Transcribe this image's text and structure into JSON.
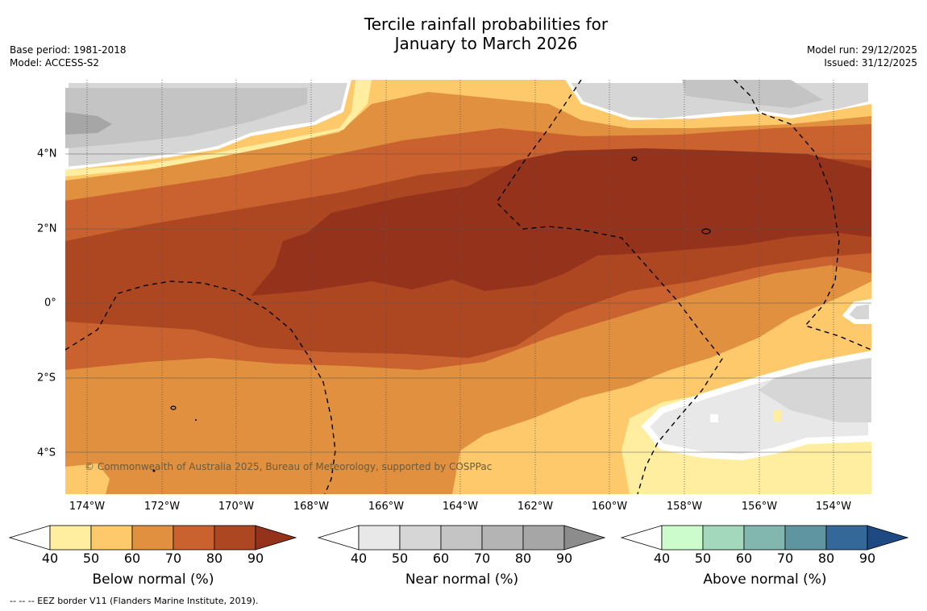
{
  "title": {
    "line1": "Tercile rainfall probabilities for",
    "line2": "January to March 2026"
  },
  "meta": {
    "base_period": "Base period: 1981-2018",
    "model": "Model: ACCESS-S2",
    "model_run": "Model run: 29/12/2025",
    "issued": "Issued: 31/12/2025"
  },
  "map": {
    "x_ticks": [
      "174°W",
      "172°W",
      "170°W",
      "168°W",
      "166°W",
      "164°W",
      "162°W",
      "160°W",
      "158°W",
      "156°W",
      "154°W"
    ],
    "y_ticks": [
      "4°N",
      "2°N",
      "0°",
      "2°S",
      "4°S"
    ],
    "copyright": "© Commonwealth of Australia 2025, Bureau of Meteorology, supported by COSPPac"
  },
  "legend": {
    "ticks": [
      "40",
      "50",
      "60",
      "70",
      "80",
      "90"
    ],
    "below": {
      "label": "Below normal (%)",
      "colors": [
        "#ffeea0",
        "#fdc96a",
        "#e0903f",
        "#c9622e",
        "#ad4722",
        "#95321c"
      ]
    },
    "near": {
      "label": "Near normal (%)",
      "colors": [
        "#e8e8e8",
        "#d6d6d6",
        "#c4c4c4",
        "#b4b4b4",
        "#a6a6a6",
        "#8c8c8c"
      ]
    },
    "above": {
      "label": "Above normal (%)",
      "colors": [
        "#ccfccc",
        "#a4d8bc",
        "#82b7b0",
        "#5e95a0",
        "#346898",
        "#1d4a82"
      ]
    }
  },
  "footnote": "--  --  -- EEZ border V11 (Flanders Marine Institute, 2019)."
}
